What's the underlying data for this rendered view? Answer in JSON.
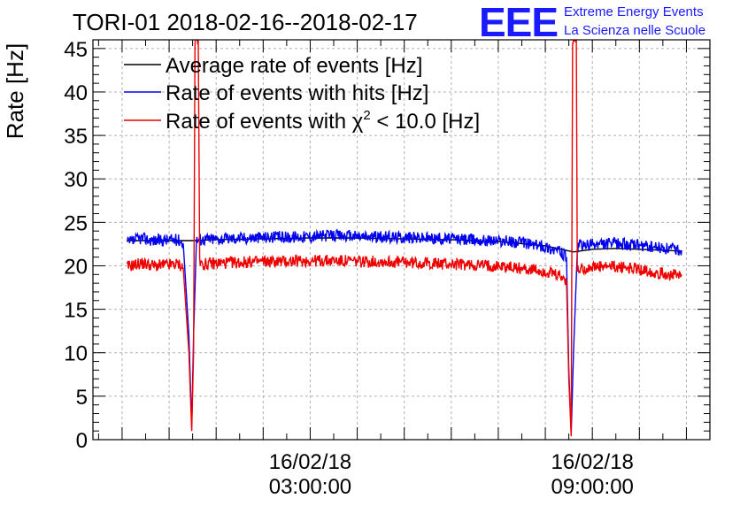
{
  "header": {
    "title": "TORI-01 2018-02-16--2018-02-17",
    "logo_text": "EEE",
    "logo_line1": "Extreme Energy Events",
    "logo_line2": "La Scienza nelle Scuole"
  },
  "colors": {
    "average": "#000000",
    "hits": "#0000ee",
    "chi2": "#ee0000",
    "logo": "#1a1aff",
    "grid": "#aaaaaa"
  },
  "chart_data": {
    "type": "line",
    "title": "TORI-01 2018-02-16--2018-02-17",
    "ylabel": "Rate [Hz]",
    "xlabel": "",
    "ylim": [
      0,
      46
    ],
    "xlim_hours": [
      -1.62,
      11.5
    ],
    "y_ticks": [
      0,
      5,
      10,
      15,
      20,
      25,
      30,
      35,
      40,
      45
    ],
    "x_ticks": [
      {
        "hour": 3,
        "date": "16/02/18",
        "time": "03:00:00"
      },
      {
        "hour": 9,
        "date": "16/02/18",
        "time": "09:00:00"
      }
    ],
    "grid": true,
    "legend_position": "top-left",
    "series": [
      {
        "name": "Average rate of events [Hz]",
        "color": "#000000",
        "points": [
          [
            -0.9,
            22.9
          ],
          [
            0.5,
            22.9
          ],
          [
            0.5,
            22.9
          ],
          [
            0.95,
            23.0
          ],
          [
            2.0,
            23.1
          ],
          [
            3.0,
            23.2
          ],
          [
            4.0,
            23.2
          ],
          [
            5.0,
            23.1
          ],
          [
            6.0,
            23.0
          ],
          [
            7.0,
            22.8
          ],
          [
            8.0,
            22.3
          ],
          [
            8.6,
            21.6
          ],
          [
            9.0,
            21.9
          ],
          [
            9.5,
            22.0
          ],
          [
            10.0,
            21.9
          ],
          [
            10.9,
            21.7
          ]
        ]
      },
      {
        "name": "Rate of events with hits [Hz]",
        "color": "#0000ee",
        "points": [
          [
            -0.9,
            22.6
          ],
          [
            -0.6,
            23.2
          ],
          [
            -0.3,
            22.9
          ],
          [
            0.0,
            23.0
          ],
          [
            0.2,
            23.0
          ],
          [
            0.3,
            22.6
          ],
          [
            0.42,
            12.0
          ],
          [
            0.48,
            1.5
          ],
          [
            0.52,
            12.0
          ],
          [
            0.58,
            23.0
          ],
          [
            0.65,
            23.0
          ],
          [
            0.8,
            23.1
          ],
          [
            1.0,
            23.1
          ],
          [
            1.5,
            23.2
          ],
          [
            2.0,
            23.3
          ],
          [
            2.5,
            23.3
          ],
          [
            3.0,
            23.4
          ],
          [
            3.5,
            23.5
          ],
          [
            4.0,
            23.4
          ],
          [
            4.5,
            23.3
          ],
          [
            5.0,
            23.3
          ],
          [
            5.5,
            23.2
          ],
          [
            6.0,
            23.1
          ],
          [
            6.5,
            23.0
          ],
          [
            7.0,
            22.9
          ],
          [
            7.5,
            22.7
          ],
          [
            8.0,
            22.2
          ],
          [
            8.3,
            21.7
          ],
          [
            8.45,
            21.0
          ],
          [
            8.5,
            8.0
          ],
          [
            8.55,
            0.7
          ],
          [
            8.6,
            10.0
          ],
          [
            8.68,
            22.0
          ],
          [
            8.75,
            22.3
          ],
          [
            9.0,
            22.4
          ],
          [
            9.5,
            22.6
          ],
          [
            10.0,
            22.3
          ],
          [
            10.5,
            22.0
          ],
          [
            10.9,
            21.8
          ]
        ]
      },
      {
        "name": "Rate of events with χ² < 10.0 [Hz]",
        "color": "#ee0000",
        "points": [
          [
            -0.9,
            19.9
          ],
          [
            -0.6,
            20.3
          ],
          [
            -0.3,
            20.0
          ],
          [
            0.0,
            20.1
          ],
          [
            0.2,
            20.2
          ],
          [
            0.3,
            19.8
          ],
          [
            0.42,
            10.0
          ],
          [
            0.48,
            1.0
          ],
          [
            0.52,
            10.0
          ],
          [
            0.55,
            46.0
          ],
          [
            0.62,
            46.0
          ],
          [
            0.65,
            20.2
          ],
          [
            0.8,
            20.2
          ],
          [
            1.0,
            20.3
          ],
          [
            1.5,
            20.4
          ],
          [
            2.0,
            20.5
          ],
          [
            2.5,
            20.5
          ],
          [
            3.0,
            20.6
          ],
          [
            3.5,
            20.6
          ],
          [
            4.0,
            20.5
          ],
          [
            4.5,
            20.5
          ],
          [
            5.0,
            20.4
          ],
          [
            5.5,
            20.3
          ],
          [
            6.0,
            20.2
          ],
          [
            6.5,
            20.1
          ],
          [
            7.0,
            20.0
          ],
          [
            7.5,
            19.7
          ],
          [
            8.0,
            19.3
          ],
          [
            8.3,
            18.8
          ],
          [
            8.45,
            18.3
          ],
          [
            8.5,
            7.0
          ],
          [
            8.55,
            0.4
          ],
          [
            8.58,
            46.0
          ],
          [
            8.66,
            46.0
          ],
          [
            8.68,
            19.5
          ],
          [
            8.75,
            19.7
          ],
          [
            9.0,
            19.8
          ],
          [
            9.5,
            19.9
          ],
          [
            10.0,
            19.6
          ],
          [
            10.5,
            19.1
          ],
          [
            10.9,
            18.8
          ]
        ]
      }
    ]
  }
}
